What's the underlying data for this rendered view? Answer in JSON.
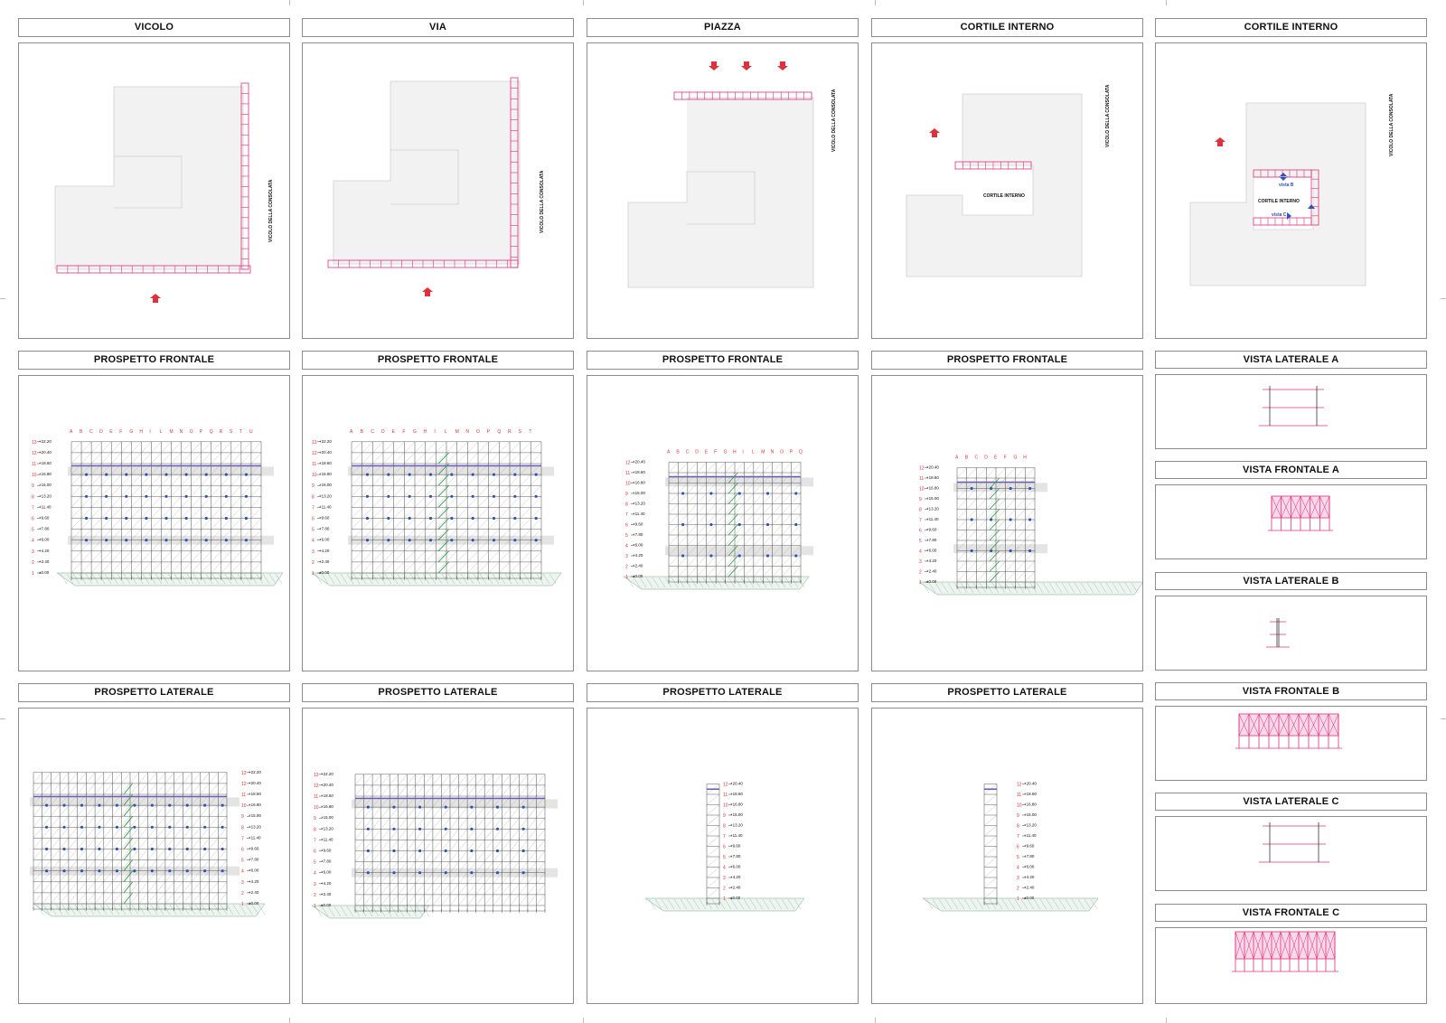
{
  "sheet": {
    "row1": [
      "VICOLO",
      "VIA",
      "PIAZZA",
      "CORTILE INTERNO",
      "CORTILE INTERNO"
    ],
    "row2": [
      "PROSPETTO FRONTALE",
      "PROSPETTO FRONTALE",
      "PROSPETTO FRONTALE",
      "PROSPETTO FRONTALE"
    ],
    "row3": [
      "PROSPETTO LATERALE",
      "PROSPETTO LATERALE",
      "PROSPETTO LATERALE",
      "PROSPETTO LATERALE"
    ],
    "details": [
      "VISTA LATERALE A",
      "VISTA FRONTALE A",
      "VISTA LATERALE B",
      "VISTA FRONTALE B",
      "VISTA LATERALE C",
      "VISTA FRONTALE C"
    ]
  },
  "plan_labels": {
    "street_vicolo": "VICOLO DELLA CONSOLATA",
    "cortile": "CORTILE INTERNO",
    "view_b": "vista B",
    "view_c": "vista C"
  },
  "grid_letters": [
    "A",
    "B",
    "C",
    "D",
    "E",
    "F",
    "G",
    "H",
    "I",
    "L",
    "M",
    "N",
    "O",
    "P",
    "Q",
    "R",
    "S",
    "T",
    "U"
  ],
  "level_marks": [
    "±0.00",
    "+2.40",
    "+4.20",
    "+6.00",
    "+7.80",
    "+9.60",
    "+11.40",
    "+13.20",
    "+15.00",
    "+16.80",
    "+18.60",
    "+20.40",
    "+22.20"
  ],
  "colors": {
    "accent": "#e0307a",
    "red": "#e0303a",
    "blue": "#2c55b8",
    "ground": "#7fa98f"
  }
}
